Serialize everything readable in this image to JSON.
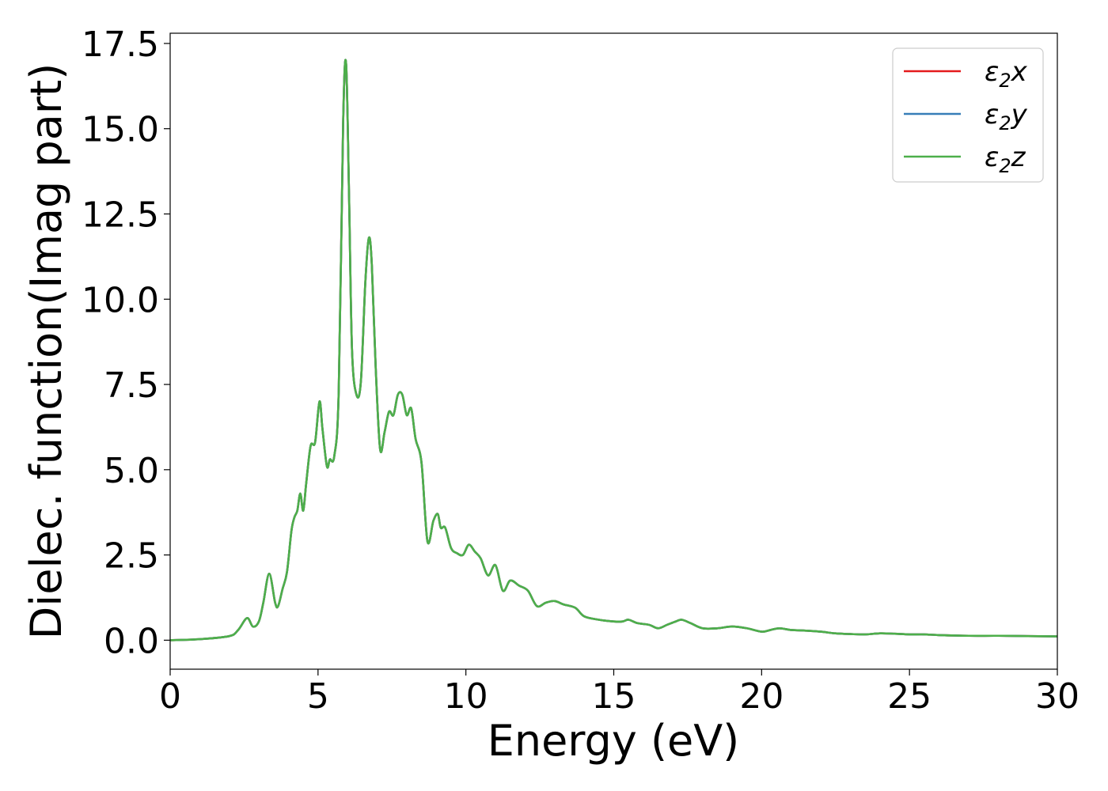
{
  "chart_data": {
    "type": "line",
    "title": "",
    "xlabel": "Energy (eV)",
    "ylabel": "Dielec. function(Imag part)",
    "xlim": [
      0,
      30
    ],
    "ylim": [
      -0.85,
      17.8
    ],
    "xticks": [
      0,
      5,
      10,
      15,
      20,
      25,
      30
    ],
    "xtick_labels": [
      "0",
      "5",
      "10",
      "15",
      "20",
      "25",
      "30"
    ],
    "yticks": [
      0.0,
      2.5,
      5.0,
      7.5,
      10.0,
      12.5,
      15.0,
      17.5
    ],
    "ytick_labels": [
      "0.0",
      "2.5",
      "5.0",
      "7.5",
      "10.0",
      "12.5",
      "15.0",
      "17.5"
    ],
    "grid": false,
    "legend_position": "top-right",
    "series": [
      {
        "name": "ε2x",
        "label_main": "ε",
        "label_sub": "2",
        "label_suffix": "x",
        "color": "#e41a1c",
        "x": [
          0,
          1.0,
          2.0,
          2.3,
          2.6,
          2.8,
          3.0,
          3.15,
          3.35,
          3.55,
          3.65,
          3.8,
          3.95,
          4.1,
          4.2,
          4.3,
          4.4,
          4.5,
          4.6,
          4.75,
          4.9,
          5.05,
          5.15,
          5.3,
          5.4,
          5.55,
          5.7,
          5.85,
          5.95,
          6.05,
          6.15,
          6.3,
          6.45,
          6.6,
          6.72,
          6.82,
          6.95,
          7.1,
          7.25,
          7.4,
          7.55,
          7.7,
          7.85,
          8.0,
          8.15,
          8.3,
          8.5,
          8.7,
          8.9,
          9.05,
          9.15,
          9.3,
          9.5,
          9.7,
          9.9,
          10.1,
          10.3,
          10.5,
          10.75,
          11.0,
          11.25,
          11.5,
          11.8,
          12.1,
          12.4,
          12.7,
          13.0,
          13.3,
          13.7,
          14.0,
          14.5,
          15.0,
          15.3,
          15.5,
          15.8,
          16.2,
          16.5,
          16.8,
          17.1,
          17.3,
          17.6,
          18.0,
          18.5,
          19.0,
          19.5,
          20.0,
          20.3,
          20.6,
          21.0,
          21.5,
          22.0,
          22.5,
          23.0,
          23.5,
          24.0,
          24.5,
          25.0,
          25.5,
          26.0,
          27.0,
          28.0,
          29.0,
          30.0
        ],
        "y": [
          0.0,
          0.03,
          0.12,
          0.3,
          0.65,
          0.4,
          0.55,
          1.1,
          1.95,
          1.1,
          1.0,
          1.5,
          2.0,
          3.2,
          3.6,
          3.8,
          4.3,
          3.8,
          4.6,
          5.7,
          5.8,
          7.0,
          6.2,
          5.1,
          5.3,
          5.4,
          7.3,
          15.2,
          16.9,
          13.0,
          8.5,
          7.2,
          7.6,
          10.5,
          11.8,
          11.0,
          8.0,
          5.6,
          6.1,
          6.7,
          6.6,
          7.2,
          7.2,
          6.6,
          6.8,
          5.9,
          5.2,
          2.9,
          3.5,
          3.7,
          3.3,
          3.3,
          2.7,
          2.55,
          2.5,
          2.8,
          2.6,
          2.4,
          1.9,
          2.2,
          1.45,
          1.75,
          1.6,
          1.45,
          1.0,
          1.1,
          1.15,
          1.05,
          0.95,
          0.7,
          0.6,
          0.55,
          0.55,
          0.6,
          0.5,
          0.45,
          0.35,
          0.45,
          0.55,
          0.6,
          0.5,
          0.35,
          0.35,
          0.4,
          0.35,
          0.25,
          0.3,
          0.35,
          0.3,
          0.28,
          0.25,
          0.2,
          0.18,
          0.17,
          0.2,
          0.19,
          0.17,
          0.17,
          0.15,
          0.13,
          0.13,
          0.12,
          0.11
        ]
      },
      {
        "name": "ε2y",
        "label_main": "ε",
        "label_sub": "2",
        "label_suffix": "y",
        "color": "#377eb8",
        "x": [
          0,
          1.0,
          2.0,
          2.3,
          2.6,
          2.8,
          3.0,
          3.15,
          3.35,
          3.55,
          3.65,
          3.8,
          3.95,
          4.1,
          4.2,
          4.3,
          4.4,
          4.5,
          4.6,
          4.75,
          4.9,
          5.05,
          5.15,
          5.3,
          5.4,
          5.55,
          5.7,
          5.85,
          5.95,
          6.05,
          6.15,
          6.3,
          6.45,
          6.6,
          6.72,
          6.82,
          6.95,
          7.1,
          7.25,
          7.4,
          7.55,
          7.7,
          7.85,
          8.0,
          8.15,
          8.3,
          8.5,
          8.7,
          8.9,
          9.05,
          9.15,
          9.3,
          9.5,
          9.7,
          9.9,
          10.1,
          10.3,
          10.5,
          10.75,
          11.0,
          11.25,
          11.5,
          11.8,
          12.1,
          12.4,
          12.7,
          13.0,
          13.3,
          13.7,
          14.0,
          14.5,
          15.0,
          15.3,
          15.5,
          15.8,
          16.2,
          16.5,
          16.8,
          17.1,
          17.3,
          17.6,
          18.0,
          18.5,
          19.0,
          19.5,
          20.0,
          20.3,
          20.6,
          21.0,
          21.5,
          22.0,
          22.5,
          23.0,
          23.5,
          24.0,
          24.5,
          25.0,
          25.5,
          26.0,
          27.0,
          28.0,
          29.0,
          30.0
        ],
        "y": [
          0.0,
          0.03,
          0.12,
          0.3,
          0.65,
          0.4,
          0.55,
          1.1,
          1.95,
          1.1,
          1.0,
          1.5,
          2.0,
          3.2,
          3.6,
          3.8,
          4.3,
          3.8,
          4.6,
          5.7,
          5.8,
          7.0,
          6.2,
          5.1,
          5.3,
          5.4,
          7.3,
          15.2,
          16.9,
          13.0,
          8.5,
          7.2,
          7.6,
          10.5,
          11.8,
          11.0,
          8.0,
          5.6,
          6.1,
          6.7,
          6.6,
          7.2,
          7.2,
          6.6,
          6.8,
          5.9,
          5.2,
          2.9,
          3.5,
          3.7,
          3.3,
          3.3,
          2.7,
          2.55,
          2.5,
          2.8,
          2.6,
          2.4,
          1.9,
          2.2,
          1.45,
          1.75,
          1.6,
          1.45,
          1.0,
          1.1,
          1.15,
          1.05,
          0.95,
          0.7,
          0.6,
          0.55,
          0.55,
          0.6,
          0.5,
          0.45,
          0.35,
          0.45,
          0.55,
          0.6,
          0.5,
          0.35,
          0.35,
          0.4,
          0.35,
          0.25,
          0.3,
          0.35,
          0.3,
          0.28,
          0.25,
          0.2,
          0.18,
          0.17,
          0.2,
          0.19,
          0.17,
          0.17,
          0.15,
          0.13,
          0.13,
          0.12,
          0.11
        ]
      },
      {
        "name": "ε2z",
        "label_main": "ε",
        "label_sub": "2",
        "label_suffix": "z",
        "color": "#4daf4a",
        "x": [
          0,
          1.0,
          2.0,
          2.3,
          2.6,
          2.8,
          3.0,
          3.15,
          3.35,
          3.55,
          3.65,
          3.8,
          3.95,
          4.1,
          4.2,
          4.3,
          4.4,
          4.5,
          4.6,
          4.75,
          4.9,
          5.05,
          5.15,
          5.3,
          5.4,
          5.55,
          5.7,
          5.85,
          5.95,
          6.05,
          6.15,
          6.3,
          6.45,
          6.6,
          6.72,
          6.82,
          6.95,
          7.1,
          7.25,
          7.4,
          7.55,
          7.7,
          7.85,
          8.0,
          8.15,
          8.3,
          8.5,
          8.7,
          8.9,
          9.05,
          9.15,
          9.3,
          9.5,
          9.7,
          9.9,
          10.1,
          10.3,
          10.5,
          10.75,
          11.0,
          11.25,
          11.5,
          11.8,
          12.1,
          12.4,
          12.7,
          13.0,
          13.3,
          13.7,
          14.0,
          14.5,
          15.0,
          15.3,
          15.5,
          15.8,
          16.2,
          16.5,
          16.8,
          17.1,
          17.3,
          17.6,
          18.0,
          18.5,
          19.0,
          19.5,
          20.0,
          20.3,
          20.6,
          21.0,
          21.5,
          22.0,
          22.5,
          23.0,
          23.5,
          24.0,
          24.5,
          25.0,
          25.5,
          26.0,
          27.0,
          28.0,
          29.0,
          30.0
        ],
        "y": [
          0.0,
          0.03,
          0.12,
          0.3,
          0.65,
          0.4,
          0.55,
          1.1,
          1.95,
          1.1,
          1.0,
          1.5,
          2.0,
          3.2,
          3.6,
          3.8,
          4.3,
          3.8,
          4.6,
          5.7,
          5.8,
          7.0,
          6.2,
          5.1,
          5.3,
          5.4,
          7.3,
          15.2,
          16.9,
          13.0,
          8.5,
          7.2,
          7.6,
          10.5,
          11.8,
          11.0,
          8.0,
          5.6,
          6.1,
          6.7,
          6.6,
          7.2,
          7.2,
          6.6,
          6.8,
          5.9,
          5.2,
          2.9,
          3.5,
          3.7,
          3.3,
          3.3,
          2.7,
          2.55,
          2.5,
          2.8,
          2.6,
          2.4,
          1.9,
          2.2,
          1.45,
          1.75,
          1.6,
          1.45,
          1.0,
          1.1,
          1.15,
          1.05,
          0.95,
          0.7,
          0.6,
          0.55,
          0.55,
          0.6,
          0.5,
          0.45,
          0.35,
          0.45,
          0.55,
          0.6,
          0.5,
          0.35,
          0.35,
          0.4,
          0.35,
          0.25,
          0.3,
          0.35,
          0.3,
          0.28,
          0.25,
          0.2,
          0.18,
          0.17,
          0.2,
          0.19,
          0.17,
          0.17,
          0.15,
          0.13,
          0.13,
          0.12,
          0.11
        ]
      }
    ]
  }
}
